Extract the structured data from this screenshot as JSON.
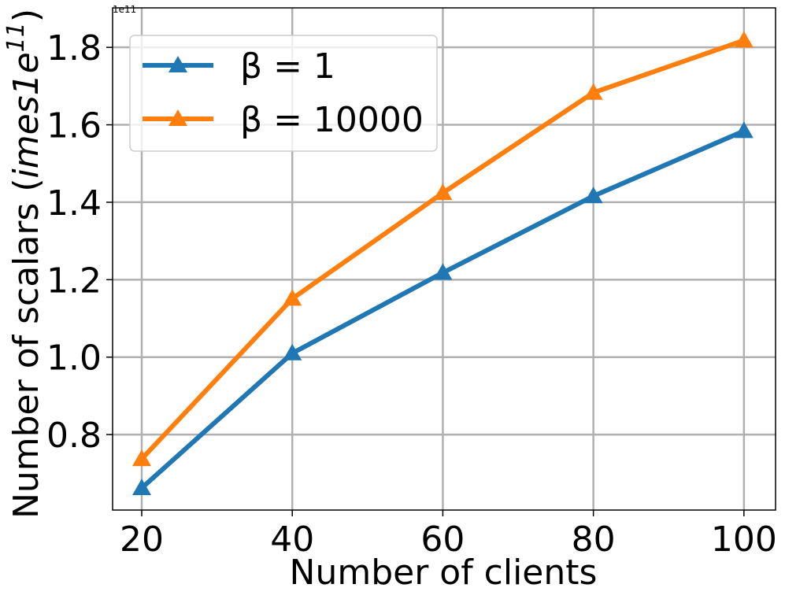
{
  "chart_data": {
    "type": "line",
    "xlabel": "Number of clients",
    "ylabel": "Number of scalars (",
    "ylabel_math": "imes1e",
    "ylabel_sup": "11",
    "ylabel_end": ")",
    "y_offset_label": "1e11",
    "x": [
      20,
      40,
      60,
      80,
      100
    ],
    "series": [
      {
        "name": "β = 1",
        "color": "#1f77b4",
        "values": [
          0.662,
          1.01,
          1.218,
          1.416,
          1.584
        ]
      },
      {
        "name": "β = 10000",
        "color": "#ff7f0e",
        "values": [
          0.737,
          1.151,
          1.424,
          1.683,
          1.818
        ]
      }
    ],
    "xlim": [
      16.13,
      104.2
    ],
    "ylim": [
      0.605,
      1.902
    ],
    "xticks": [
      20,
      40,
      60,
      80,
      100
    ],
    "yticks": [
      {
        "value": 0.8,
        "label": "0.8"
      },
      {
        "value": 1.0,
        "label": "1.0"
      },
      {
        "value": 1.2,
        "label": "1.2"
      },
      {
        "value": 1.4,
        "label": "1.4"
      },
      {
        "value": 1.6,
        "label": "1.6"
      },
      {
        "value": 1.8,
        "label": "1.8"
      }
    ],
    "grid": true,
    "legend": "upper left"
  }
}
